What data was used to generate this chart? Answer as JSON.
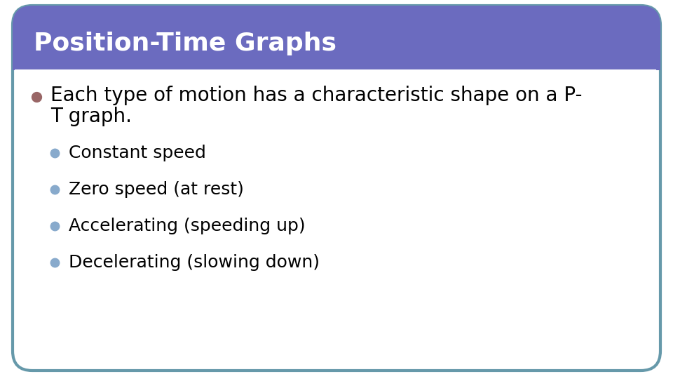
{
  "title": "Position-Time Graphs",
  "title_color": "#ffffff",
  "title_bg_color": "#6b6bbf",
  "title_fontsize": 26,
  "slide_bg_color": "#ffffff",
  "border_color": "#6699aa",
  "main_bullet_color": "#996666",
  "main_bullet_text_line1": "Each type of motion has a characteristic shape on a P-",
  "main_bullet_text_line2": "T graph.",
  "main_bullet_fontsize": 20,
  "sub_bullet_color": "#88aacc",
  "sub_bullets": [
    "Constant speed",
    "Zero speed (at rest)",
    "Accelerating (speeding up)",
    "Decelerating (slowing down)"
  ],
  "sub_bullet_fontsize": 18,
  "main_text_fontweight": "normal",
  "sub_text_fontweight": "normal"
}
